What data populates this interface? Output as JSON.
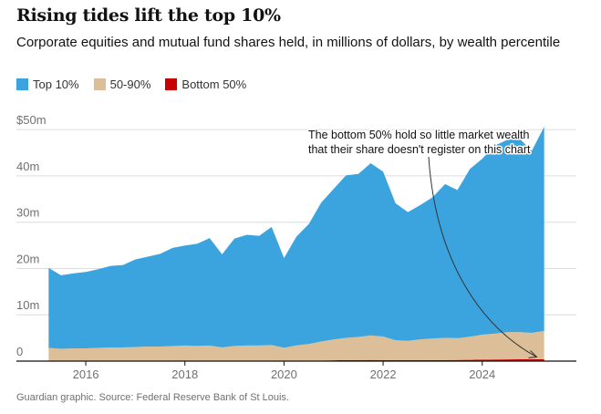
{
  "chart_data": {
    "type": "area",
    "stacked": true,
    "title": "Rising tides lift the top 10%",
    "subtitle": "Corporate equities and mutual fund shares held, in millions of dollars, by wealth percentile",
    "source": "Guardian graphic. Source: Federal Reserve Bank of St Louis.",
    "annotation": "The bottom 50% hold so little market wealth that their share doesn't register on this chart",
    "annotation_lines": [
      "The bottom 50% hold so little market wealth",
      "that their share doesn't register on this chart"
    ],
    "y_ticks": [
      {
        "value": 50,
        "label": "$50m"
      },
      {
        "value": 40,
        "label": "40m"
      },
      {
        "value": 30,
        "label": "30m"
      },
      {
        "value": 20,
        "label": "20m"
      },
      {
        "value": 10,
        "label": "10m"
      },
      {
        "value": 0,
        "label": "0"
      }
    ],
    "x_ticks": [
      {
        "value": 2016,
        "label": "2016"
      },
      {
        "value": 2018,
        "label": "2018"
      },
      {
        "value": 2020,
        "label": "2020"
      },
      {
        "value": 2022,
        "label": "2022"
      },
      {
        "value": 2024,
        "label": "2024"
      }
    ],
    "xlim": [
      2014.6,
      2025.9
    ],
    "ylim": [
      0,
      52
    ],
    "x": [
      2015.25,
      2015.5,
      2015.75,
      2016.0,
      2016.25,
      2016.5,
      2016.75,
      2017.0,
      2017.25,
      2017.5,
      2017.75,
      2018.0,
      2018.25,
      2018.5,
      2018.75,
      2019.0,
      2019.25,
      2019.5,
      2019.75,
      2020.0,
      2020.25,
      2020.5,
      2020.75,
      2021.0,
      2021.25,
      2021.5,
      2021.75,
      2022.0,
      2022.25,
      2022.5,
      2022.75,
      2023.0,
      2023.25,
      2023.5,
      2023.75,
      2024.0,
      2024.25,
      2024.5,
      2024.75,
      2025.0,
      2025.25
    ],
    "series": [
      {
        "name": "Bottom 50%",
        "color": "#c70000",
        "values": [
          0.05,
          0.05,
          0.05,
          0.05,
          0.05,
          0.05,
          0.05,
          0.06,
          0.06,
          0.06,
          0.06,
          0.07,
          0.07,
          0.07,
          0.06,
          0.07,
          0.07,
          0.07,
          0.08,
          0.07,
          0.09,
          0.1,
          0.13,
          0.17,
          0.21,
          0.22,
          0.24,
          0.22,
          0.2,
          0.19,
          0.2,
          0.21,
          0.23,
          0.25,
          0.28,
          0.31,
          0.34,
          0.36,
          0.39,
          0.4,
          0.42
        ]
      },
      {
        "name": "50-90%",
        "color": "#dcbf98",
        "values": [
          2.8,
          2.6,
          2.7,
          2.7,
          2.8,
          2.9,
          2.9,
          3.0,
          3.1,
          3.1,
          3.2,
          3.3,
          3.2,
          3.3,
          2.9,
          3.2,
          3.3,
          3.3,
          3.4,
          2.8,
          3.3,
          3.6,
          4.1,
          4.5,
          4.8,
          5.0,
          5.3,
          5.1,
          4.3,
          4.2,
          4.5,
          4.7,
          4.8,
          4.7,
          5.0,
          5.4,
          5.6,
          5.9,
          5.9,
          5.7,
          6.1
        ]
      },
      {
        "name": "Top 10%",
        "color": "#3ba4df",
        "values": [
          17.3,
          15.9,
          16.2,
          16.5,
          17.0,
          17.6,
          17.8,
          18.9,
          19.4,
          20.0,
          21.2,
          21.6,
          22.1,
          23.2,
          20.1,
          23.2,
          23.9,
          23.7,
          25.5,
          19.4,
          23.5,
          25.9,
          30.0,
          32.5,
          35.1,
          35.2,
          37.2,
          35.6,
          29.6,
          27.8,
          29.0,
          30.5,
          33.2,
          32.0,
          36.2,
          38.0,
          40.6,
          41.5,
          41.8,
          39.3,
          44.1
        ]
      }
    ],
    "legend": [
      {
        "label": "Top 10%",
        "color": "#3ba4df"
      },
      {
        "label": "50-90%",
        "color": "#dcbf98"
      },
      {
        "label": "Bottom 50%",
        "color": "#c70000"
      }
    ]
  }
}
